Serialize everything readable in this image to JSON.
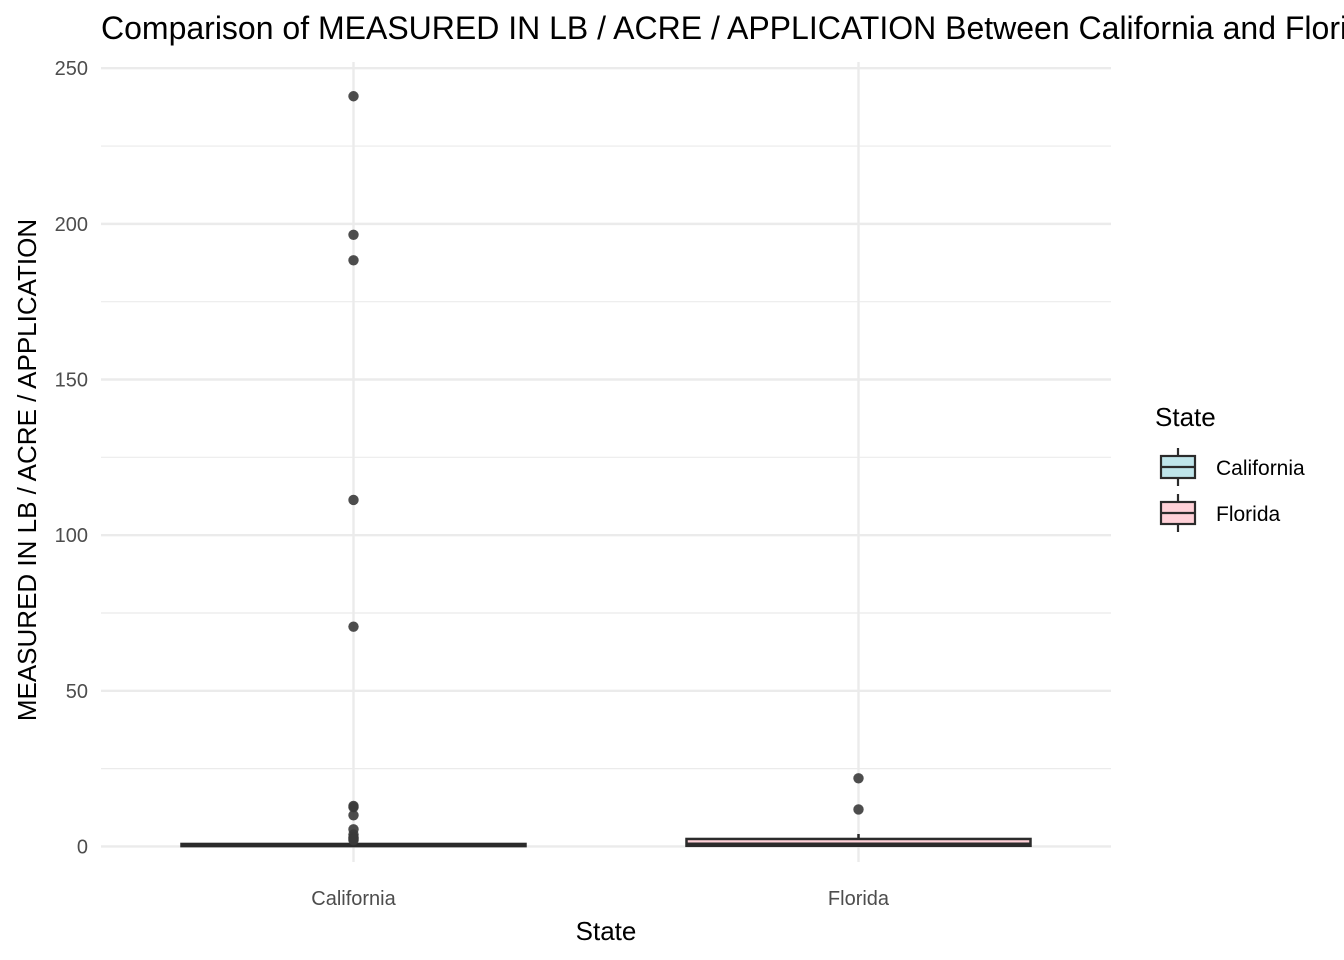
{
  "chart_data": {
    "type": "box",
    "title": "Comparison of MEASURED IN LB / ACRE / APPLICATION Between California and Florida",
    "xlabel": "State",
    "ylabel": "MEASURED IN LB / ACRE / APPLICATION",
    "categories": [
      "California",
      "Florida"
    ],
    "ylim": [
      -5,
      252
    ],
    "yticks": [
      0,
      50,
      100,
      150,
      200,
      250
    ],
    "grid": true,
    "legend": {
      "title": "State",
      "position": "right",
      "entries": [
        "California",
        "Florida"
      ]
    },
    "colors": {
      "California": "#bfe5ea",
      "Florida": "#ffd1d8",
      "outline": "#2b2b2b",
      "outlier": "#3a3a3a",
      "grid": "#ebebeb"
    },
    "boxes": [
      {
        "name": "California",
        "whisker_low": 0.0,
        "q1": 0.1,
        "median": 0.4,
        "q3": 0.8,
        "whisker_high": 1.8,
        "outliers": [
          241,
          196.5,
          188.3,
          111.3,
          70.6,
          13.0,
          12.6,
          10.0,
          5.5,
          3.8,
          3.0,
          2.6,
          2.3,
          2.0
        ]
      },
      {
        "name": "Florida",
        "whisker_low": 0.0,
        "q1": 0.2,
        "median": 0.8,
        "q3": 2.4,
        "whisker_high": 4.0,
        "outliers": [
          21.9,
          11.9
        ]
      }
    ]
  }
}
